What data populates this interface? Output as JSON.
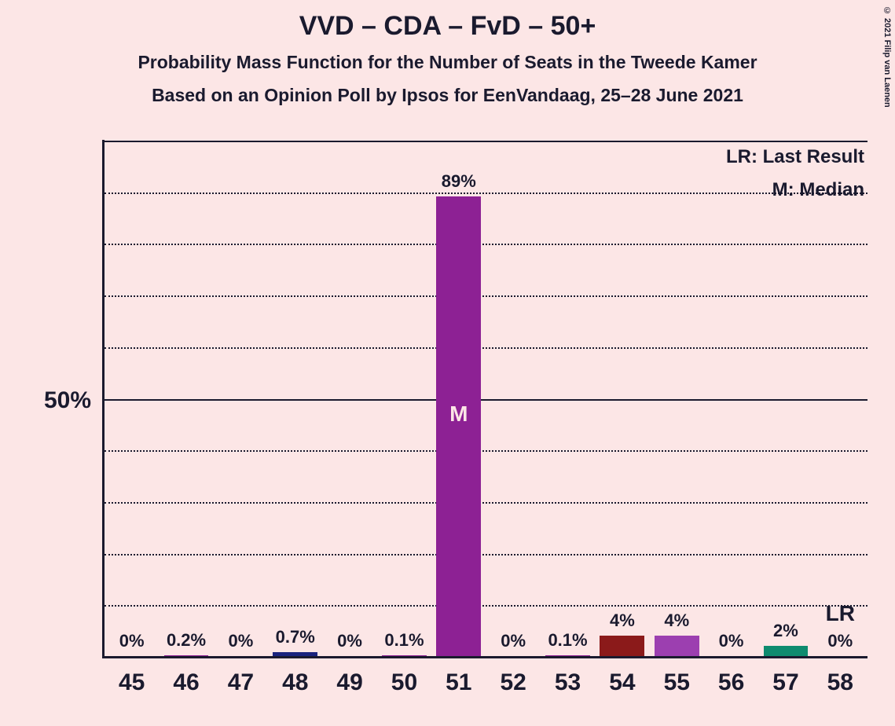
{
  "chart": {
    "type": "bar",
    "title": "VVD – CDA – FvD – 50+",
    "title_fontsize": 34,
    "subtitle1": "Probability Mass Function for the Number of Seats in the Tweede Kamer",
    "subtitle2": "Based on an Opinion Poll by Ipsos for EenVandaag, 25–28 June 2021",
    "subtitle_fontsize": 23,
    "background_color": "#fce6e6",
    "axis_color": "#1a1a2e",
    "text_color": "#1a1a2e",
    "ylim": [
      0,
      100
    ],
    "y_major_ticks": [
      50,
      100
    ],
    "y_minor_step": 10,
    "y_label_50": "50%",
    "y_label_fontsize": 30,
    "x_categories": [
      "45",
      "46",
      "47",
      "48",
      "49",
      "50",
      "51",
      "52",
      "53",
      "54",
      "55",
      "56",
      "57",
      "58"
    ],
    "x_tick_fontsize": 30,
    "bar_width_ratio": 0.82,
    "value_label_fontsize": 22,
    "bars": [
      {
        "x": "45",
        "value": 0,
        "label": "0%",
        "color": "#8d2194"
      },
      {
        "x": "46",
        "value": 0.2,
        "label": "0.2%",
        "color": "#8d2194"
      },
      {
        "x": "47",
        "value": 0,
        "label": "0%",
        "color": "#8d2194"
      },
      {
        "x": "48",
        "value": 0.7,
        "label": "0.7%",
        "color": "#1a237e"
      },
      {
        "x": "49",
        "value": 0,
        "label": "0%",
        "color": "#8d2194"
      },
      {
        "x": "50",
        "value": 0.1,
        "label": "0.1%",
        "color": "#8d2194"
      },
      {
        "x": "51",
        "value": 89,
        "label": "89%",
        "color": "#8d2194",
        "median": true,
        "median_label": "M"
      },
      {
        "x": "52",
        "value": 0,
        "label": "0%",
        "color": "#8d2194"
      },
      {
        "x": "53",
        "value": 0.1,
        "label": "0.1%",
        "color": "#8d2194"
      },
      {
        "x": "54",
        "value": 4,
        "label": "4%",
        "color": "#8b1a1a"
      },
      {
        "x": "55",
        "value": 4,
        "label": "4%",
        "color": "#9c3fb0"
      },
      {
        "x": "56",
        "value": 0,
        "label": "0%",
        "color": "#8d2194"
      },
      {
        "x": "57",
        "value": 2,
        "label": "2%",
        "color": "#0e8b6f"
      },
      {
        "x": "58",
        "value": 0,
        "label": "0%",
        "color": "#8d2194",
        "last_result": true
      }
    ],
    "legend": {
      "lr": "LR: Last Result",
      "m": "M: Median",
      "lr_marker": "LR",
      "fontsize": 24
    },
    "median_label_fontsize": 28,
    "copyright": "© 2021 Filip van Laenen"
  }
}
